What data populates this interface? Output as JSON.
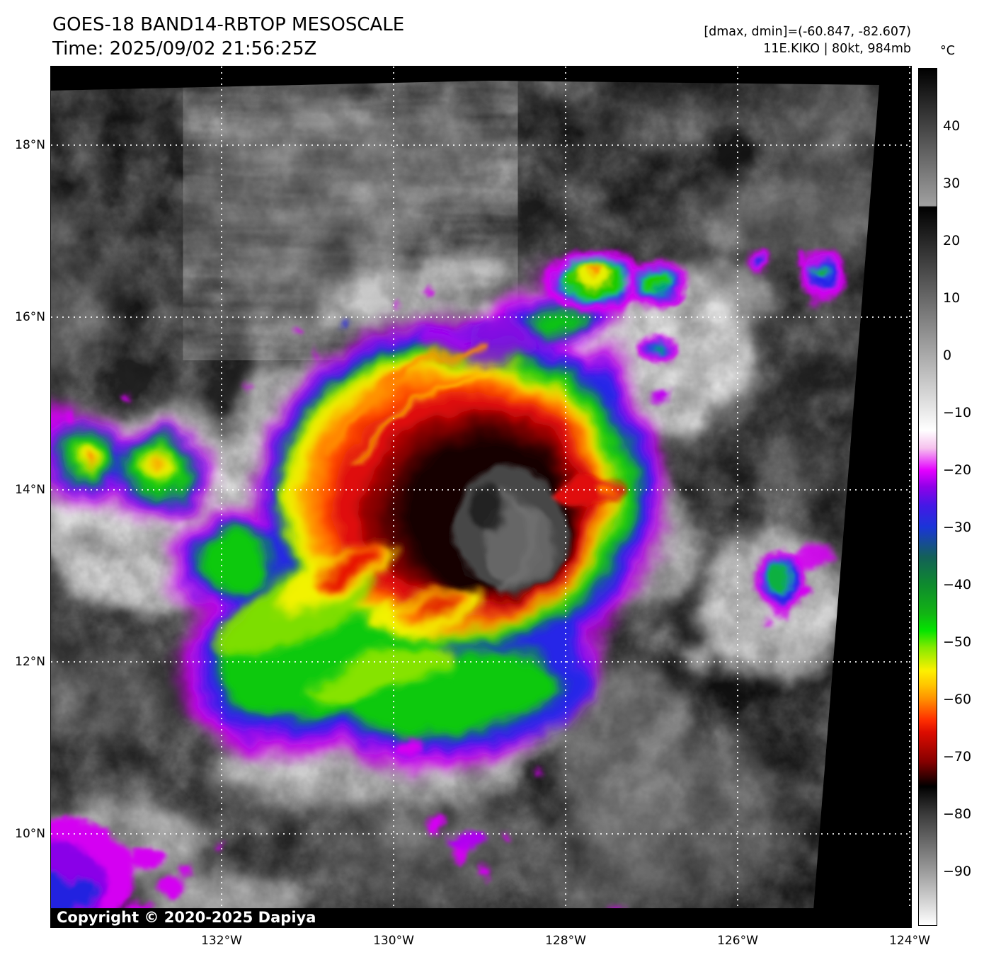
{
  "header": {
    "title": "GOES-18 BAND14-RBTOP MESOSCALE",
    "time": "Time: 2025/09/02 21:56:25Z",
    "dmax_dmin": "[dmax, dmin]=(-60.847, -82.607)",
    "storm_info": "11E.KIKO | 80kt, 984mb"
  },
  "colorbar": {
    "unit": "°C",
    "ticks": [
      "40",
      "30",
      "20",
      "10",
      "0",
      "−10",
      "−20",
      "−30",
      "−40",
      "−50",
      "−60",
      "−70",
      "−80",
      "−90"
    ]
  },
  "axes": {
    "lat": [
      "18°N",
      "16°N",
      "14°N",
      "12°N",
      "10°N"
    ],
    "lon": [
      "132°W",
      "130°W",
      "128°W",
      "126°W",
      "124°W"
    ]
  },
  "map": {
    "copyright": "Copyright © 2020-2025 Dapiya",
    "satellite": "GOES-18",
    "band": "BAND14-RBTOP",
    "sector": "MESOSCALE",
    "storm_id": "11E.KIKO",
    "intensity_kt": "80kt",
    "pressure_mb": "984mb",
    "dmax_c": "-60.847",
    "dmin_c": "-82.607"
  }
}
